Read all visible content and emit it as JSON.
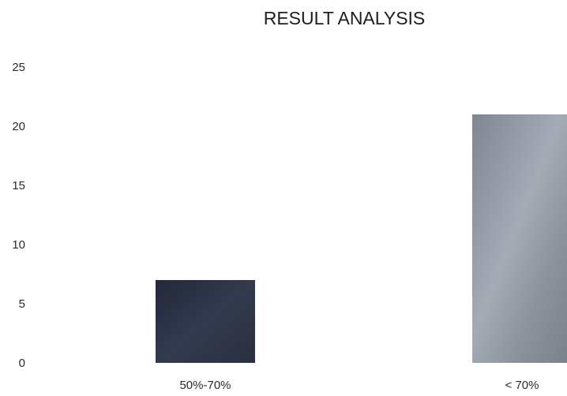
{
  "chart_data": {
    "type": "bar",
    "title": "RESULT ANALYSIS",
    "xlabel": "",
    "ylabel": "",
    "categories": [
      "50%-70%",
      "< 70%"
    ],
    "values": [
      7,
      21
    ],
    "ylim": [
      0,
      25
    ],
    "yticks": [
      "0",
      "5",
      "10",
      "15",
      "20",
      "25"
    ],
    "grid": false,
    "legend": "none",
    "colors": [
      "#2b3140",
      "#8a9099"
    ]
  }
}
